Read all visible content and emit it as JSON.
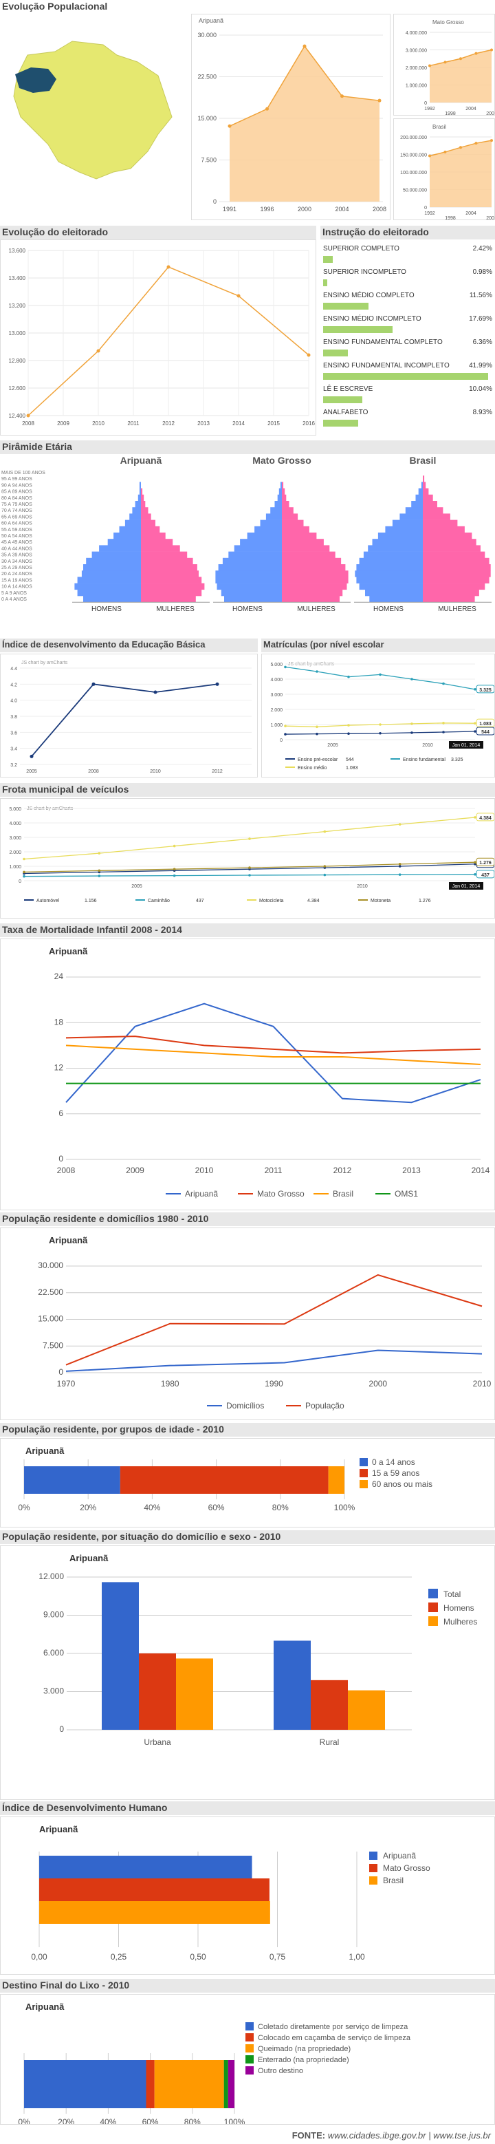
{
  "header_pop": {
    "title": "Evolução Populacional",
    "aripuana_label": "Aripuanã",
    "mt_label": "Mato Grosso",
    "br_label": "Brasil"
  },
  "colors": {
    "blue": "#3366cc",
    "red": "#dc3912",
    "orange": "#ff9900",
    "green": "#109618",
    "purple": "#990099",
    "yellow": "#e5e870",
    "area_fill": "#fbcf98",
    "area_line": "#f0a33a",
    "grey_head": "#e8e8e8",
    "pink": "#ff66aa",
    "pblue": "#6699ff",
    "lightgreen": "#a6d46e"
  },
  "pop_main": {
    "type": "area",
    "x": [
      "1991",
      "1996",
      "2000",
      "2004",
      "2008"
    ],
    "y": [
      13600,
      16700,
      28000,
      19000,
      18200
    ],
    "yticks": [
      "30.000",
      "22.500",
      "15.000",
      "7.500",
      "0"
    ],
    "ylim": [
      0,
      30000
    ]
  },
  "pop_mt": {
    "type": "area",
    "x": [
      "1992",
      "",
      "1998",
      "2004",
      "2008"
    ],
    "xs": [
      "1992",
      "1998",
      "2004",
      "2008"
    ],
    "y": [
      2100000,
      2300000,
      2500000,
      2800000,
      3000000
    ],
    "yticks": [
      "4.000.000",
      "3.000.000",
      "2.000.000",
      "1.000.000",
      "0"
    ],
    "ylim": [
      0,
      4000000
    ]
  },
  "pop_br": {
    "type": "area",
    "xs": [
      "1992",
      "1998",
      "2004",
      "2008"
    ],
    "y": [
      146000000,
      157000000,
      170000000,
      182000000,
      190000000
    ],
    "yticks": [
      "200.000.000",
      "150.000.000",
      "100.000.000",
      "50.000.000",
      "0"
    ],
    "ylim": [
      0,
      200000000
    ]
  },
  "eleitorado": {
    "title": "Evolução do eleitorado",
    "type": "line",
    "x": [
      "2008",
      "2010",
      "2012",
      "2014",
      "2016"
    ],
    "xticks": [
      "2008",
      "2009",
      "2010",
      "2011",
      "2012",
      "2013",
      "2014",
      "2015",
      "2016"
    ],
    "y": [
      12400,
      12870,
      13480,
      13270,
      12840
    ],
    "yticks": [
      "13.600",
      "13.400",
      "13.200",
      "13.000",
      "12.800",
      "12.600",
      "12.400"
    ],
    "ylim": [
      12400,
      13600
    ]
  },
  "instrucao": {
    "title": "Instrução do eleitorado",
    "items": [
      {
        "label": "SUPERIOR COMPLETO",
        "pct": "2.42%",
        "v": 2.42
      },
      {
        "label": "SUPERIOR INCOMPLETO",
        "pct": "0.98%",
        "v": 0.98
      },
      {
        "label": "ENSINO MÉDIO COMPLETO",
        "pct": "11.56%",
        "v": 11.56
      },
      {
        "label": "ENSINO MÉDIO INCOMPLETO",
        "pct": "17.69%",
        "v": 17.69
      },
      {
        "label": "ENSINO FUNDAMENTAL COMPLETO",
        "pct": "6.36%",
        "v": 6.36
      },
      {
        "label": "ENSINO FUNDAMENTAL INCOMPLETO",
        "pct": "41.99%",
        "v": 41.99
      },
      {
        "label": "LÊ E ESCREVE",
        "pct": "10.04%",
        "v": 10.04
      },
      {
        "label": "ANALFABETO",
        "pct": "8.93%",
        "v": 8.93
      }
    ]
  },
  "piramide": {
    "title": "Pirâmide Etária",
    "charts": [
      "Aripuanã",
      "Mato Grosso",
      "Brasil"
    ],
    "homens": "HOMENS",
    "mulheres": "MULHERES",
    "ages": [
      "MAIS DE 100 ANOS",
      "95 A 99 ANOS",
      "90 A 94 ANOS",
      "85 A 89 ANOS",
      "80 A 84 ANOS",
      "75 A 79 ANOS",
      "70 A 74 ANOS",
      "65 A 69 ANOS",
      "60 A 64 ANOS",
      "55 A 59 ANOS",
      "50 A 54 ANOS",
      "45 A 49 ANOS",
      "40 A 44 ANOS",
      "35 A 39 ANOS",
      "30 A 34 ANOS",
      "25 A 29 ANOS",
      "20 A 24 ANOS",
      "15 A 19 ANOS",
      "10 A 14 ANOS",
      "5 A 9 ANOS",
      "0 A 4 ANOS"
    ],
    "ari_h": [
      0,
      0,
      1,
      1,
      2,
      4,
      6,
      8,
      11,
      15,
      19,
      23,
      29,
      34,
      38,
      40,
      41,
      44,
      46,
      44,
      40
    ],
    "ari_m": [
      0,
      0,
      0,
      1,
      2,
      3,
      5,
      7,
      10,
      13,
      17,
      22,
      27,
      32,
      36,
      39,
      40,
      42,
      44,
      42,
      38
    ],
    "mt_h": [
      0,
      0,
      1,
      2,
      3,
      5,
      8,
      11,
      15,
      19,
      24,
      29,
      33,
      37,
      41,
      44,
      46,
      46,
      45,
      42,
      40
    ],
    "mt_m": [
      0,
      0,
      1,
      2,
      3,
      5,
      8,
      11,
      15,
      19,
      24,
      29,
      33,
      37,
      41,
      44,
      46,
      46,
      45,
      42,
      40
    ],
    "br_h": [
      0,
      0,
      1,
      3,
      5,
      8,
      12,
      16,
      21,
      26,
      31,
      35,
      38,
      41,
      44,
      46,
      47,
      46,
      44,
      40,
      37
    ],
    "br_m": [
      0,
      1,
      2,
      4,
      7,
      10,
      14,
      19,
      24,
      29,
      34,
      37,
      40,
      43,
      46,
      47,
      47,
      46,
      43,
      39,
      36
    ]
  },
  "ideb": {
    "title": "Índice de desenvolvimento da Educação Básica",
    "credit": "JS chart by amCharts",
    "x": [
      "2005",
      "2008",
      "2010",
      "2012"
    ],
    "y": [
      3.3,
      4.2,
      4.1,
      4.2
    ],
    "yticks": [
      "4.4",
      "4.2",
      "4.0",
      "3.8",
      "3.6",
      "3.4",
      "3.2"
    ],
    "ylim": [
      3.2,
      4.4
    ]
  },
  "matriculas": {
    "title": "Matrículas (por nível escolar",
    "credit": "JS chart by amCharts",
    "xticks": [
      "2005",
      "2010"
    ],
    "yticks": [
      "5.000",
      "4.000",
      "3.000",
      "2.000",
      "1.000",
      "0"
    ],
    "ylim": [
      0,
      5000
    ],
    "series": [
      {
        "name": "Ensino pré-escolar",
        "end": "544",
        "values": [
          360,
          380,
          400,
          420,
          460,
          500,
          544
        ],
        "color": "#1a3a7a"
      },
      {
        "name": "Ensino fundamental",
        "end": "3.325",
        "values": [
          4800,
          4500,
          4150,
          4300,
          4000,
          3700,
          3325
        ],
        "color": "#2aa0b8"
      },
      {
        "name": "Ensino médio",
        "end": "1.083",
        "values": [
          900,
          850,
          950,
          1000,
          1050,
          1100,
          1083
        ],
        "color": "#e8dc5a"
      }
    ],
    "date_flag": "Jan 01, 2014"
  },
  "frota": {
    "title": "Frota municipal de veículos",
    "credit": "JS chart by amCharts",
    "xticks": [
      "2005",
      "2010"
    ],
    "yticks": [
      "5.000",
      "4.000",
      "3.000",
      "2.000",
      "1.000",
      "0"
    ],
    "ylim": [
      0,
      5000
    ],
    "series": [
      {
        "name": "Automóvel",
        "end": "1.156",
        "values": [
          500,
          600,
          700,
          800,
          900,
          1000,
          1156
        ],
        "color": "#1a3a7a"
      },
      {
        "name": "Caminhão",
        "end": "437",
        "values": [
          300,
          330,
          350,
          380,
          400,
          420,
          437
        ],
        "color": "#2aa0b8"
      },
      {
        "name": "Motocicleta",
        "end": "4.384",
        "values": [
          1500,
          1900,
          2400,
          2900,
          3400,
          3900,
          4384
        ],
        "color": "#e8dc5a"
      },
      {
        "name": "Motoneta",
        "end": "1.276",
        "values": [
          600,
          700,
          800,
          900,
          1000,
          1150,
          1276
        ],
        "color": "#a89028"
      }
    ],
    "date_flag": "Jan 01, 2014"
  },
  "mortalidade": {
    "title": "Taxa de Mortalidade Infantil 2008 - 2014",
    "subtitle": "Aripuanã",
    "x": [
      "2008",
      "2009",
      "2010",
      "2011",
      "2012",
      "2013",
      "2014"
    ],
    "yticks": [
      "24",
      "18",
      "12",
      "6",
      "0"
    ],
    "ylim": [
      0,
      24
    ],
    "series": [
      {
        "name": "Aripuanã",
        "values": [
          7.5,
          17.5,
          20.5,
          17.5,
          8,
          7.5,
          10.5
        ],
        "color": "#3366cc"
      },
      {
        "name": "Mato Grosso",
        "values": [
          16,
          16.2,
          15,
          14.5,
          14,
          14.3,
          14.5
        ],
        "color": "#dc3912"
      },
      {
        "name": "Brasil",
        "values": [
          15,
          14.5,
          14,
          13.5,
          13.5,
          13,
          12.5
        ],
        "color": "#ff9900"
      },
      {
        "name": "OMS1",
        "values": [
          10,
          10,
          10,
          10,
          10,
          10,
          10
        ],
        "color": "#109618"
      }
    ]
  },
  "residente": {
    "title": "População residente e domicílios 1980 - 2010",
    "subtitle": "Aripuanã",
    "x": [
      1970,
      1980,
      1991,
      2000,
      2010
    ],
    "xticks": [
      "1970",
      "1980",
      "1990",
      "2000",
      "2010"
    ],
    "yticks": [
      "30.000",
      "22.500",
      "15.000",
      "7.500",
      "0"
    ],
    "ylim": [
      0,
      30000
    ],
    "xlim": [
      1970,
      2010
    ],
    "series": [
      {
        "name": "Domicílios",
        "values": [
          400,
          2000,
          2800,
          6300,
          5300
        ],
        "color": "#3366cc"
      },
      {
        "name": "População",
        "values": [
          2200,
          13800,
          13700,
          27500,
          18700
        ],
        "color": "#dc3912"
      }
    ]
  },
  "idade": {
    "title": "População residente, por grupos de idade - 2010",
    "subtitle": "Aripuanã",
    "xticks": [
      "0%",
      "20%",
      "40%",
      "60%",
      "80%",
      "100%"
    ],
    "series": [
      {
        "name": "0 a 14 anos",
        "v": 30,
        "color": "#3366cc"
      },
      {
        "name": "15 a 59 anos",
        "v": 65,
        "color": "#dc3912"
      },
      {
        "name": "60 anos ou mais",
        "v": 5,
        "color": "#ff9900"
      }
    ]
  },
  "situacao": {
    "title": "População residente, por situação do domicílio e sexo - 2010",
    "subtitle": "Aripuanã",
    "categories": [
      "Urbana",
      "Rural"
    ],
    "yticks": [
      "12.000",
      "9.000",
      "6.000",
      "3.000",
      "0"
    ],
    "ylim": [
      0,
      12000
    ],
    "series": [
      {
        "name": "Total",
        "values": [
          11600,
          7000
        ],
        "color": "#3366cc"
      },
      {
        "name": "Homens",
        "values": [
          6000,
          3900
        ],
        "color": "#dc3912"
      },
      {
        "name": "Mulheres",
        "values": [
          5600,
          3100
        ],
        "color": "#ff9900"
      }
    ]
  },
  "idh": {
    "title": "Índice de Desenvolvimento Humano",
    "subtitle": "Aripuanã",
    "xticks": [
      "0,00",
      "0,25",
      "0,50",
      "0,75",
      "1,00"
    ],
    "xlim": [
      0,
      1
    ],
    "series": [
      {
        "name": "Aripuanã",
        "v": 0.67,
        "color": "#3366cc"
      },
      {
        "name": "Mato Grosso",
        "v": 0.725,
        "color": "#dc3912"
      },
      {
        "name": "Brasil",
        "v": 0.727,
        "color": "#ff9900"
      }
    ]
  },
  "lixo": {
    "title": "Destino Final do Lixo - 2010",
    "subtitle": "Aripuanã",
    "xticks": [
      "0%",
      "20%",
      "40%",
      "60%",
      "80%",
      "100%"
    ],
    "series": [
      {
        "name": "Coletado diretamente por serviço de limpeza",
        "v": 58,
        "color": "#3366cc"
      },
      {
        "name": "Colocado em caçamba de serviço de limpeza",
        "v": 4,
        "color": "#dc3912"
      },
      {
        "name": "Queimado (na propriedade)",
        "v": 33,
        "color": "#ff9900"
      },
      {
        "name": "Enterrado (na propriedade)",
        "v": 2,
        "color": "#109618"
      },
      {
        "name": "Outro destino",
        "v": 3,
        "color": "#990099"
      }
    ]
  },
  "footer": {
    "fonte": "FONTE:",
    "links": "www.cidades.ibge.gov.br | www.tse.jus.br"
  }
}
